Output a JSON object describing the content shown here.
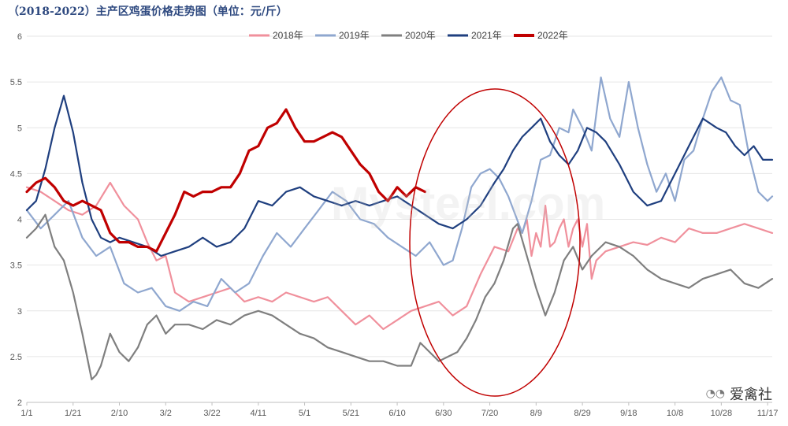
{
  "chart_data": {
    "type": "line",
    "title": "（2018-2022）主产区鸡蛋价格走势图（单位：元/斤）",
    "ylim": [
      2,
      6
    ],
    "yticks": [
      "2",
      "2.5",
      "3",
      "3.5",
      "4",
      "4.5",
      "5",
      "5.5",
      "6"
    ],
    "x_tick_labels": [
      "1/1",
      "1/21",
      "2/10",
      "3/2",
      "3/22",
      "4/11",
      "5/1",
      "5/21",
      "6/10",
      "6/30",
      "7/20",
      "8/9",
      "8/29",
      "9/18",
      "10/8",
      "10/28",
      "11/17"
    ],
    "x_tick_days": [
      0,
      20,
      40,
      60,
      80,
      100,
      120,
      140,
      160,
      180,
      200,
      220,
      240,
      260,
      280,
      300,
      320
    ],
    "xlim_days": [
      0,
      322
    ],
    "legend_position": "top",
    "series": [
      {
        "name": "2018年",
        "color": "#f0909c",
        "x_days": [
          0,
          6,
          12,
          18,
          24,
          30,
          36,
          42,
          48,
          52,
          56,
          60,
          64,
          70,
          76,
          82,
          88,
          94,
          100,
          106,
          112,
          118,
          124,
          130,
          136,
          142,
          148,
          154,
          160,
          166,
          172,
          178,
          184,
          190,
          196,
          202,
          208,
          212,
          214,
          216,
          218,
          220,
          222,
          224,
          226,
          228,
          230,
          232,
          234,
          236,
          238,
          240,
          242,
          244,
          246,
          250,
          256,
          262,
          268,
          274,
          280,
          286,
          292,
          298,
          304,
          310,
          316,
          322
        ],
        "values": [
          4.35,
          4.3,
          4.2,
          4.1,
          4.05,
          4.15,
          4.4,
          4.15,
          4.0,
          3.75,
          3.55,
          3.6,
          3.2,
          3.1,
          3.15,
          3.2,
          3.25,
          3.1,
          3.15,
          3.1,
          3.2,
          3.15,
          3.1,
          3.15,
          3.0,
          2.85,
          2.95,
          2.8,
          2.9,
          3.0,
          3.05,
          3.1,
          2.95,
          3.05,
          3.4,
          3.7,
          3.65,
          3.9,
          3.85,
          4.0,
          3.6,
          3.85,
          3.7,
          4.15,
          3.7,
          3.75,
          3.9,
          4.0,
          3.7,
          3.9,
          4.0,
          3.7,
          3.95,
          3.35,
          3.55,
          3.65,
          3.7,
          3.75,
          3.72,
          3.8,
          3.75,
          3.9,
          3.85,
          3.85,
          3.9,
          3.95,
          3.9,
          3.85
        ]
      },
      {
        "name": "2019年",
        "color": "#8fa7cf",
        "x_days": [
          0,
          6,
          12,
          18,
          24,
          30,
          36,
          42,
          48,
          54,
          60,
          66,
          72,
          78,
          84,
          90,
          96,
          102,
          108,
          114,
          120,
          126,
          132,
          138,
          144,
          150,
          156,
          162,
          168,
          174,
          180,
          184,
          188,
          192,
          196,
          200,
          204,
          208,
          214,
          218,
          222,
          226,
          230,
          234,
          236,
          240,
          244,
          248,
          252,
          256,
          260,
          264,
          268,
          272,
          276,
          280,
          284,
          288,
          292,
          296,
          300,
          304,
          308,
          312,
          316,
          320,
          322
        ],
        "values": [
          4.1,
          3.9,
          4.05,
          4.2,
          3.8,
          3.6,
          3.7,
          3.3,
          3.2,
          3.25,
          3.05,
          3.0,
          3.1,
          3.05,
          3.35,
          3.2,
          3.3,
          3.6,
          3.85,
          3.7,
          3.9,
          4.1,
          4.3,
          4.2,
          4.0,
          3.95,
          3.8,
          3.7,
          3.6,
          3.75,
          3.5,
          3.55,
          3.9,
          4.35,
          4.5,
          4.55,
          4.45,
          4.25,
          3.85,
          4.2,
          4.65,
          4.7,
          5.0,
          4.95,
          5.2,
          5.0,
          4.75,
          5.55,
          5.1,
          4.9,
          5.5,
          5.0,
          4.6,
          4.3,
          4.5,
          4.2,
          4.65,
          4.75,
          5.1,
          5.4,
          5.55,
          5.3,
          5.25,
          4.7,
          4.3,
          4.2,
          4.25
        ]
      },
      {
        "name": "2020年",
        "color": "#7f7f7f",
        "x_days": [
          0,
          4,
          8,
          12,
          16,
          20,
          24,
          28,
          30,
          32,
          36,
          40,
          44,
          48,
          52,
          56,
          60,
          64,
          70,
          76,
          82,
          88,
          94,
          100,
          106,
          112,
          118,
          124,
          130,
          136,
          142,
          148,
          154,
          160,
          166,
          170,
          174,
          178,
          182,
          186,
          190,
          194,
          198,
          202,
          206,
          210,
          212,
          216,
          220,
          224,
          228,
          232,
          236,
          240,
          244,
          250,
          256,
          262,
          268,
          274,
          280,
          286,
          292,
          298,
          304,
          310,
          316,
          322
        ],
        "values": [
          3.8,
          3.9,
          4.05,
          3.7,
          3.55,
          3.2,
          2.75,
          2.25,
          2.3,
          2.4,
          2.75,
          2.55,
          2.45,
          2.6,
          2.85,
          2.95,
          2.75,
          2.85,
          2.85,
          2.8,
          2.9,
          2.85,
          2.95,
          3.0,
          2.95,
          2.85,
          2.75,
          2.7,
          2.6,
          2.55,
          2.5,
          2.45,
          2.45,
          2.4,
          2.4,
          2.65,
          2.55,
          2.45,
          2.5,
          2.55,
          2.7,
          2.9,
          3.15,
          3.3,
          3.55,
          3.9,
          3.95,
          3.6,
          3.25,
          2.95,
          3.2,
          3.55,
          3.7,
          3.45,
          3.6,
          3.75,
          3.7,
          3.6,
          3.45,
          3.35,
          3.3,
          3.25,
          3.35,
          3.4,
          3.45,
          3.3,
          3.25,
          3.35
        ]
      },
      {
        "name": "2021年",
        "color": "#1f3f7f",
        "x_days": [
          0,
          4,
          8,
          12,
          16,
          20,
          24,
          28,
          32,
          36,
          40,
          46,
          52,
          58,
          64,
          70,
          76,
          82,
          88,
          94,
          100,
          106,
          112,
          118,
          124,
          130,
          136,
          142,
          148,
          154,
          160,
          166,
          172,
          178,
          184,
          190,
          196,
          202,
          206,
          210,
          214,
          218,
          222,
          226,
          230,
          234,
          238,
          242,
          246,
          250,
          256,
          262,
          268,
          274,
          280,
          286,
          292,
          298,
          302,
          306,
          310,
          314,
          318,
          322
        ],
        "values": [
          4.1,
          4.2,
          4.55,
          5.0,
          5.35,
          4.95,
          4.4,
          4.0,
          3.8,
          3.75,
          3.8,
          3.75,
          3.7,
          3.6,
          3.65,
          3.7,
          3.8,
          3.7,
          3.75,
          3.9,
          4.2,
          4.15,
          4.3,
          4.35,
          4.25,
          4.2,
          4.15,
          4.2,
          4.15,
          4.2,
          4.25,
          4.15,
          4.05,
          3.95,
          3.9,
          4.0,
          4.15,
          4.4,
          4.55,
          4.75,
          4.9,
          5.0,
          5.1,
          4.85,
          4.7,
          4.6,
          4.75,
          5.0,
          4.95,
          4.85,
          4.6,
          4.3,
          4.15,
          4.2,
          4.5,
          4.8,
          5.1,
          5.0,
          4.95,
          4.8,
          4.7,
          4.8,
          4.65,
          4.65
        ]
      },
      {
        "name": "2022年",
        "color": "#c00000",
        "x_days": [
          0,
          4,
          8,
          12,
          16,
          20,
          24,
          28,
          32,
          36,
          40,
          44,
          48,
          52,
          56,
          60,
          64,
          68,
          72,
          76,
          80,
          84,
          88,
          92,
          96,
          100,
          104,
          108,
          112,
          116,
          120,
          124,
          128,
          132,
          136,
          140,
          144,
          148,
          152,
          156,
          160,
          164,
          168,
          172
        ],
        "values": [
          4.3,
          4.4,
          4.45,
          4.35,
          4.2,
          4.15,
          4.2,
          4.15,
          4.1,
          3.85,
          3.75,
          3.75,
          3.7,
          3.7,
          3.65,
          3.85,
          4.05,
          4.3,
          4.25,
          4.3,
          4.3,
          4.35,
          4.35,
          4.5,
          4.75,
          4.8,
          5.0,
          5.05,
          5.2,
          5.0,
          4.85,
          4.85,
          4.9,
          4.95,
          4.9,
          4.75,
          4.6,
          4.5,
          4.3,
          4.2,
          4.35,
          4.25,
          4.35,
          4.3
        ]
      }
    ]
  },
  "brand": {
    "icon": "wechat-icon",
    "text": "爱禽社"
  },
  "watermark": {
    "text": "Mysteel.com"
  }
}
